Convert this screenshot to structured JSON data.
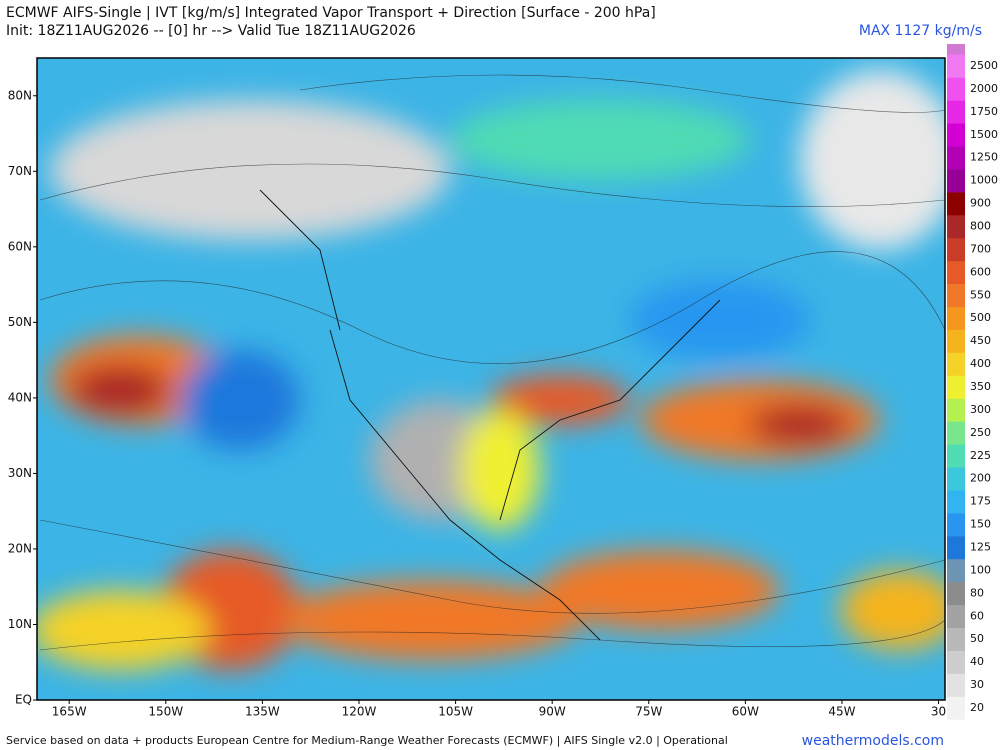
{
  "header": {
    "title": "ECMWF AIFS-Single | IVT [kg/m/s] Integrated Vapor Transport + Direction [Surface - 200 hPa]",
    "subtitle": "Init: 18Z11AUG2026 -- [0] hr --> Valid Tue 18Z11AUG2026",
    "max_label": "MAX 1127 kg/m/s"
  },
  "map": {
    "xlim": [
      -170,
      -29
    ],
    "ylim": [
      0,
      85
    ],
    "lat_ticks": [
      {
        "value": 80,
        "label": "80N"
      },
      {
        "value": 70,
        "label": "70N"
      },
      {
        "value": 60,
        "label": "60N"
      },
      {
        "value": 50,
        "label": "50N"
      },
      {
        "value": 40,
        "label": "40N"
      },
      {
        "value": 30,
        "label": "30N"
      },
      {
        "value": 20,
        "label": "20N"
      },
      {
        "value": 10,
        "label": "10N"
      },
      {
        "value": 0,
        "label": "EQ"
      }
    ],
    "lon_ticks": [
      {
        "value": -165,
        "label": "165W"
      },
      {
        "value": -150,
        "label": "150W"
      },
      {
        "value": -135,
        "label": "135W"
      },
      {
        "value": -120,
        "label": "120W"
      },
      {
        "value": -105,
        "label": "105W"
      },
      {
        "value": -90,
        "label": "90W"
      },
      {
        "value": -75,
        "label": "75W"
      },
      {
        "value": -60,
        "label": "60W"
      },
      {
        "value": -45,
        "label": "45W"
      },
      {
        "value": -30,
        "label": "30"
      }
    ]
  },
  "colorbar": {
    "levels": [
      20,
      30,
      40,
      50,
      60,
      80,
      100,
      125,
      150,
      175,
      200,
      225,
      250,
      300,
      350,
      400,
      450,
      500,
      550,
      600,
      700,
      800,
      900,
      1000,
      1250,
      1500,
      1750,
      2000,
      2500
    ],
    "colors": [
      "#f2f2f2",
      "#e2e2e2",
      "#cdcdcd",
      "#b9b9b9",
      "#a3a3a3",
      "#8c8c8c",
      "#6e96b4",
      "#1e78dc",
      "#2896f0",
      "#32b4f0",
      "#3cc8dc",
      "#50dcb4",
      "#78e68c",
      "#b4f050",
      "#f0f032",
      "#f5d228",
      "#f5b41e",
      "#f5961e",
      "#f07828",
      "#e65a28",
      "#c83c28",
      "#aa2828",
      "#8c0000",
      "#960096",
      "#b400b4",
      "#d200d2",
      "#e628e6",
      "#f050f0",
      "#f078f0"
    ]
  },
  "footer": {
    "credit": "Service based on data + products European Centre for Medium-Range Weather Forecasts (ECMWF) | AIFS Single v2.0 | Operational",
    "site": "weathermodels.com"
  }
}
